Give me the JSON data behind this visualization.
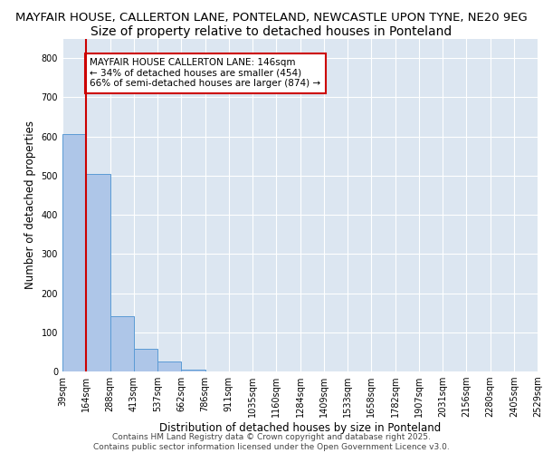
{
  "title_line1": "MAYFAIR HOUSE, CALLERTON LANE, PONTELAND, NEWCASTLE UPON TYNE, NE20 9EG",
  "title_line2": "Size of property relative to detached houses in Ponteland",
  "xlabel": "Distribution of detached houses by size in Ponteland",
  "ylabel": "Number of detached properties",
  "bar_values": [
    605,
    505,
    140,
    57,
    25,
    5,
    0,
    0,
    0,
    0,
    0,
    0,
    0,
    0,
    0,
    0,
    0,
    0,
    0,
    0
  ],
  "categories": [
    "39sqm",
    "164sqm",
    "288sqm",
    "413sqm",
    "537sqm",
    "662sqm",
    "786sqm",
    "911sqm",
    "1035sqm",
    "1160sqm",
    "1284sqm",
    "1409sqm",
    "1533sqm",
    "1658sqm",
    "1782sqm",
    "1907sqm",
    "2031sqm",
    "2156sqm",
    "2280sqm",
    "2405sqm",
    "2529sqm"
  ],
  "bar_color": "#aec6e8",
  "bar_edge_color": "#5b9bd5",
  "vline_x": 1,
  "vline_color": "#cc0000",
  "annotation_text": "MAYFAIR HOUSE CALLERTON LANE: 146sqm\n← 34% of detached houses are smaller (454)\n66% of semi-detached houses are larger (874) →",
  "annotation_box_color": "#ffffff",
  "annotation_border_color": "#cc0000",
  "ylim": [
    0,
    850
  ],
  "yticks": [
    0,
    100,
    200,
    300,
    400,
    500,
    600,
    700,
    800
  ],
  "background_color": "#dce6f1",
  "footer_text": "Contains HM Land Registry data © Crown copyright and database right 2025.\nContains public sector information licensed under the Open Government Licence v3.0.",
  "title_fontsize": 9.5,
  "subtitle_fontsize": 10,
  "axis_label_fontsize": 8.5,
  "tick_fontsize": 7,
  "annotation_fontsize": 7.5,
  "footer_fontsize": 6.5
}
